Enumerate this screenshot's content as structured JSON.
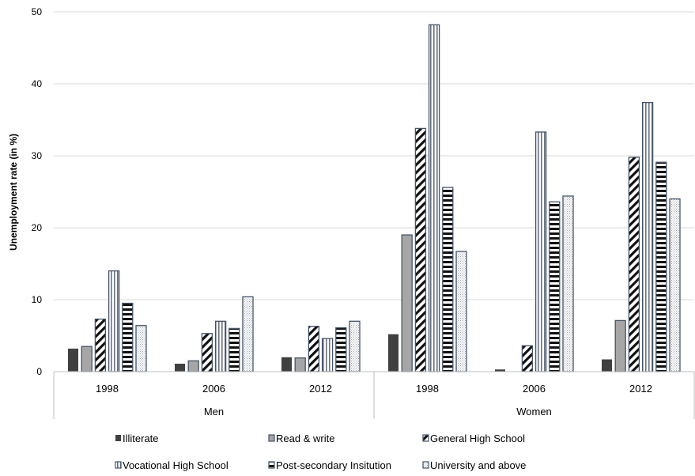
{
  "chart_data": {
    "type": "bar",
    "title": "",
    "ylabel": "Unemployment  rate (in %)",
    "xlabel": "",
    "ylim": [
      0,
      50
    ],
    "yticks": [
      0,
      10,
      20,
      30,
      40,
      50
    ],
    "grid": true,
    "legend_position": "bottom",
    "groups": [
      {
        "label": "Men",
        "categories": [
          "1998",
          "2006",
          "2012"
        ]
      },
      {
        "label": "Women",
        "categories": [
          "1998",
          "2006",
          "2012"
        ]
      }
    ],
    "series": [
      {
        "name": "Illiterate",
        "values": [
          3.2,
          1.1,
          2.0,
          5.2,
          0.3,
          1.7
        ]
      },
      {
        "name": "Read & write",
        "values": [
          3.5,
          1.5,
          1.9,
          19.0,
          0.0,
          7.1
        ]
      },
      {
        "name": "General High School",
        "values": [
          7.3,
          5.3,
          6.3,
          33.8,
          3.6,
          29.8
        ]
      },
      {
        "name": "Vocational High School",
        "values": [
          14.0,
          7.0,
          4.6,
          48.2,
          33.3,
          37.4
        ]
      },
      {
        "name": "Post-secondary Insitution",
        "values": [
          9.5,
          6.0,
          6.1,
          25.6,
          23.6,
          29.1
        ]
      },
      {
        "name": "University and above",
        "values": [
          6.4,
          10.4,
          7.0,
          16.7,
          24.4,
          24.0
        ]
      }
    ]
  },
  "colors": {
    "illiterate": "#404040",
    "read_write": "#a6a6a6",
    "outline": "#44546a",
    "grid": "#d9d9d9",
    "axis": "#bfbfbf"
  },
  "icons": [
    "solid-fill",
    "grey-fill",
    "diagonal-stripes",
    "vertical-stripes",
    "horizontal-stripes",
    "dotted-fill"
  ]
}
